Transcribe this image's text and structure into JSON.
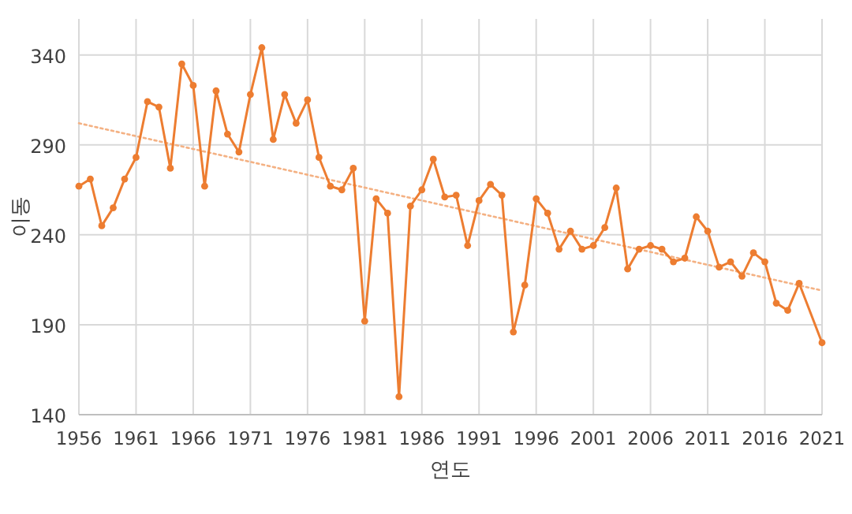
{
  "chart_data": {
    "type": "line",
    "xlabel": "연도",
    "ylabel": "이동",
    "xlim": [
      1956,
      2021
    ],
    "xticks": [
      1956,
      1961,
      1966,
      1971,
      1976,
      1981,
      1986,
      1991,
      1996,
      2001,
      2006,
      2011,
      2016,
      2021
    ],
    "ylim": [
      140,
      360
    ],
    "yticks": [
      140,
      190,
      240,
      290,
      340
    ],
    "grid": true,
    "marker": "circle",
    "line_style": "solid",
    "series": [
      {
        "color": "#ed7d31",
        "x": [
          1956,
          1957,
          1958,
          1959,
          1960,
          1961,
          1962,
          1963,
          1964,
          1965,
          1966,
          1967,
          1968,
          1969,
          1970,
          1971,
          1972,
          1973,
          1974,
          1975,
          1976,
          1977,
          1978,
          1979,
          1980,
          1981,
          1982,
          1983,
          1984,
          1985,
          1986,
          1987,
          1988,
          1989,
          1990,
          1991,
          1992,
          1993,
          1994,
          1995,
          1996,
          1997,
          1998,
          1999,
          2000,
          2001,
          2002,
          2003,
          2004,
          2005,
          2006,
          2007,
          2008,
          2009,
          2010,
          2011,
          2012,
          2013,
          2014,
          2015,
          2016,
          2017,
          2018,
          2019,
          2021
        ],
        "values": [
          267,
          271,
          245,
          255,
          271,
          283,
          314,
          311,
          277,
          335,
          323,
          267,
          320,
          296,
          286,
          318,
          344,
          293,
          318,
          302,
          315,
          283,
          267,
          265,
          277,
          192,
          260,
          252,
          150,
          256,
          265,
          282,
          261,
          262,
          234,
          259,
          268,
          262,
          186,
          212,
          260,
          252,
          232,
          242,
          232,
          234,
          244,
          266,
          221,
          232,
          234,
          232,
          225,
          227,
          250,
          242,
          222,
          225,
          217,
          230,
          225,
          202,
          198,
          213,
          180
        ]
      },
      {
        "color": "#f4b183",
        "type": "line",
        "marker": "none",
        "line_style": "dotted",
        "x": [
          1956,
          2021
        ],
        "values": [
          302,
          209
        ]
      }
    ]
  }
}
